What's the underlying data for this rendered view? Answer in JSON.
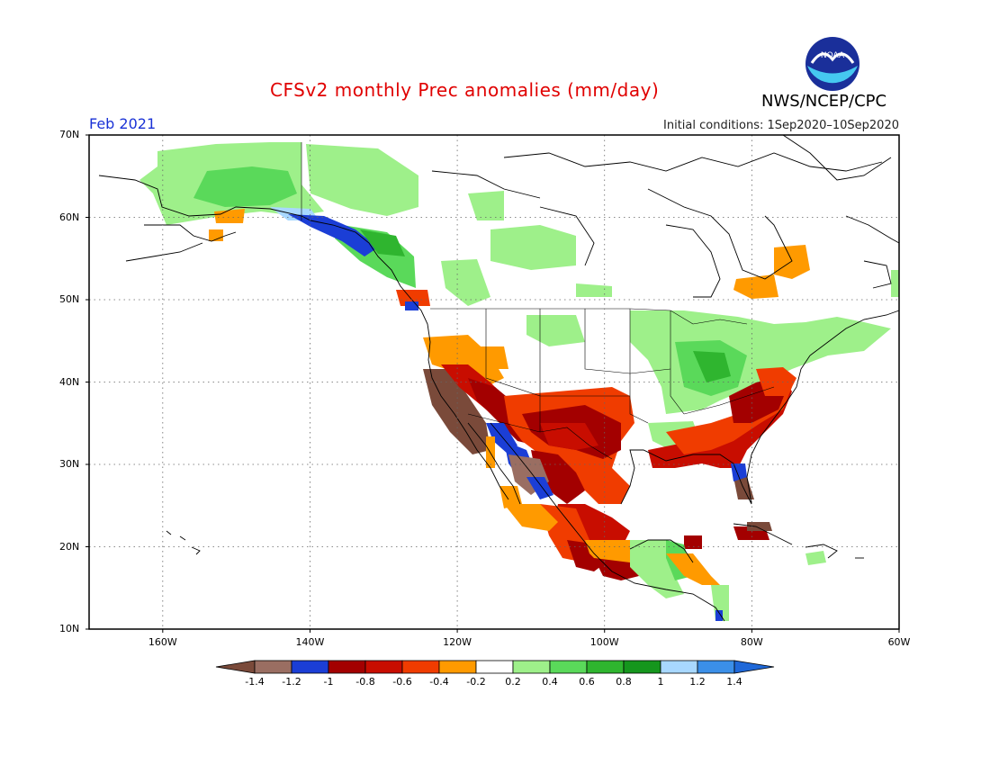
{
  "header": {
    "title": "CFSv2 monthly Prec anomalies (mm/day)",
    "organization": "NWS/NCEP/CPC",
    "logo_text": "NOAA",
    "period": "Feb 2021",
    "initial_conditions": "Initial conditions: 1Sep2020–10Sep2020"
  },
  "map": {
    "lat_labels": [
      "70N",
      "60N",
      "50N",
      "40N",
      "30N",
      "20N",
      "10N"
    ],
    "lon_labels": [
      "160W",
      "140W",
      "120W",
      "100W",
      "80W",
      "60W"
    ],
    "lat_range": [
      10,
      70
    ],
    "lon_range": [
      -170,
      -60
    ],
    "grid": "dotted"
  },
  "colorbar": {
    "labels": [
      "-1.4",
      "-1.2",
      "-1",
      "-0.8",
      "-0.6",
      "-0.4",
      "-0.2",
      "0.2",
      "0.4",
      "0.6",
      "0.8",
      "1",
      "1.2",
      "1.4"
    ],
    "colors": [
      "#7a4a3a",
      "#9a6e62",
      "#1b3ed6",
      "#a30000",
      "#c80d00",
      "#f03c00",
      "#ff9a00",
      "#ffffff",
      "#9ef08a",
      "#5ad95a",
      "#2fb52f",
      "#15961d",
      "#a8d8ff",
      "#3b8fe8",
      "#1f68d8"
    ]
  },
  "legend_colors": {
    "very_dry": "#7a4a3a",
    "dry_mid": "#9a6e62",
    "blue": "#1b3ed6",
    "dark_red": "#a30000",
    "red": "#c80d00",
    "orange_red": "#f03c00",
    "orange": "#ff9a00",
    "light_green": "#9ef08a",
    "green": "#5ad95a",
    "dark_green": "#2fb52f",
    "light_blue": "#a8d8ff"
  }
}
